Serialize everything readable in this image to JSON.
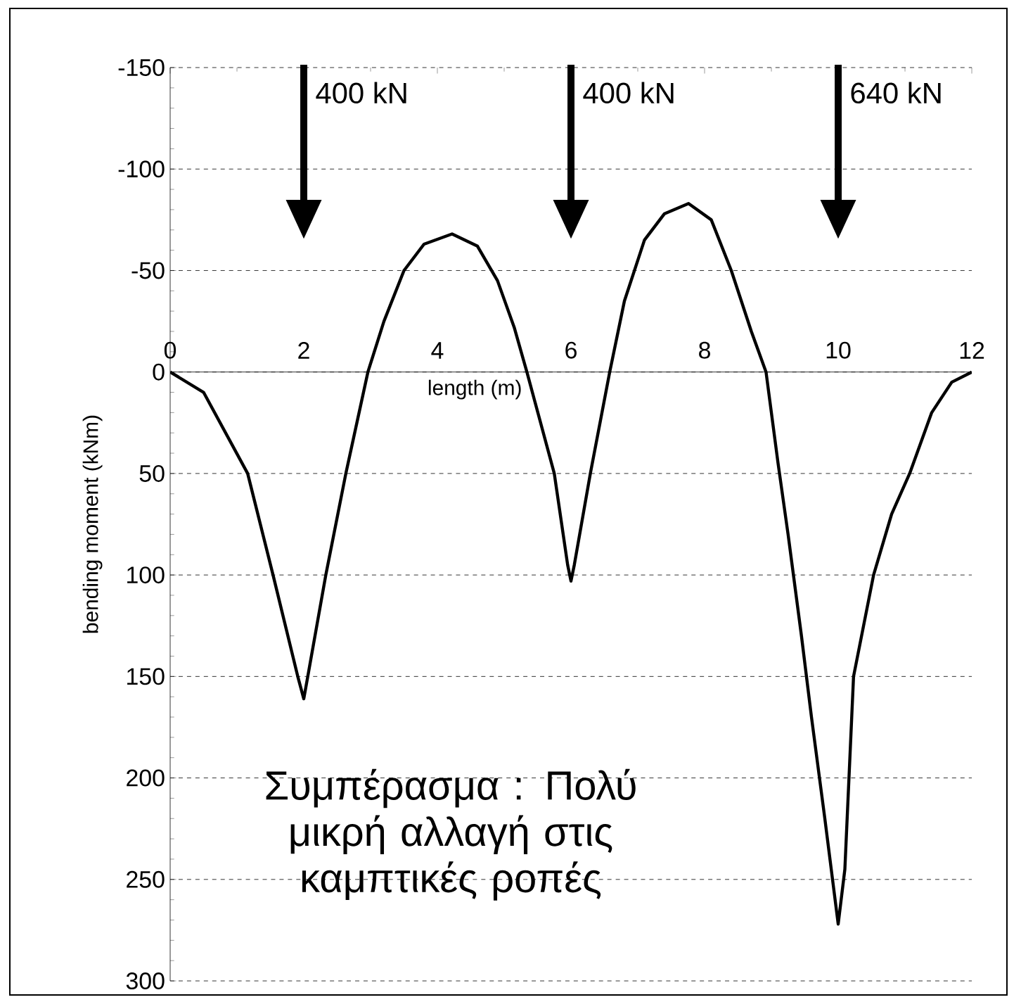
{
  "chart_data": {
    "type": "line",
    "xlabel": "length (m)",
    "ylabel": "bending moment (kNm)",
    "xlim": [
      0,
      12
    ],
    "xticks": [
      0,
      2,
      4,
      6,
      8,
      10,
      12
    ],
    "ylim": [
      300,
      -150
    ],
    "yticks": [
      -150,
      -100,
      -50,
      0,
      50,
      100,
      150,
      200,
      250,
      300
    ],
    "grid": "y",
    "color": "#000000",
    "x": [
      0,
      0.5,
      1.16,
      1.54,
      1.91,
      2,
      2.06,
      2.33,
      2.63,
      2.96,
      3.2,
      3.5,
      3.8,
      4.22,
      4.6,
      4.9,
      5.15,
      5.34,
      5.75,
      5.95,
      6,
      6.05,
      6.29,
      6.58,
      6.8,
      7.1,
      7.4,
      7.76,
      8.1,
      8.4,
      8.7,
      8.92,
      9.1,
      9.25,
      9.45,
      9.6,
      9.8,
      10,
      10.1,
      10.23,
      10.53,
      10.8,
      11.07,
      11.4,
      11.7,
      12
    ],
    "values": [
      0,
      10,
      50,
      100,
      150,
      161,
      150,
      100,
      50,
      0,
      -25,
      -50,
      -63,
      -68,
      -62,
      -45,
      -22,
      0,
      50,
      95,
      103,
      95,
      50,
      0,
      -35,
      -65,
      -78,
      -83,
      -75,
      -50,
      -20,
      0,
      45,
      80,
      130,
      170,
      220,
      272,
      245,
      150,
      100,
      70,
      50,
      20,
      5,
      0
    ],
    "annotations": [
      "400 kN",
      "400 kN",
      "640 kN",
      "Συμπέρασμα : Πολύ μικρή αλλαγή στις καμπτικές ροπές"
    ]
  }
}
